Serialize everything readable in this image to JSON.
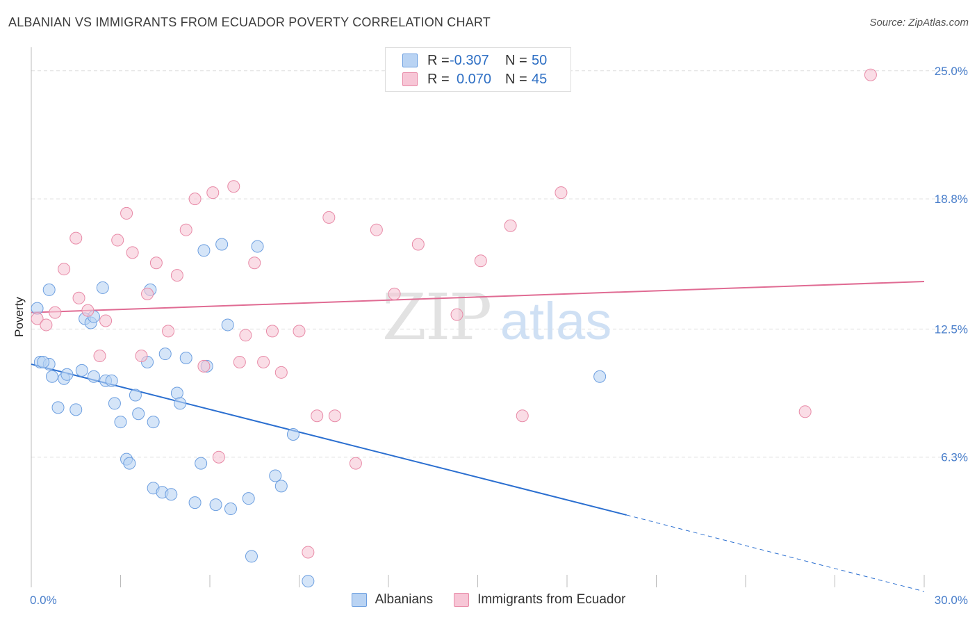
{
  "header": {
    "title": "ALBANIAN VS IMMIGRANTS FROM ECUADOR POVERTY CORRELATION CHART",
    "source": "Source: ZipAtlas.com"
  },
  "legend": {
    "series1": {
      "r_label": "R = ",
      "r_value": "-0.307",
      "n_label": "N = ",
      "n_value": "50"
    },
    "series2": {
      "r_label": "R = ",
      "r_value": "0.070",
      "n_label": "N = ",
      "n_value": "45"
    }
  },
  "bottom_legend": {
    "series1": "Albanians",
    "series2": "Immigrants from Ecuador"
  },
  "colors": {
    "blue_fill": "#b9d3f3",
    "blue_stroke": "#6d9fe0",
    "blue_line": "#2b6fd0",
    "pink_fill": "#f7c6d6",
    "pink_stroke": "#e88aa7",
    "pink_line": "#e06b93",
    "grid": "#dddddd",
    "tick_text": "#4a7fcb"
  },
  "chart_data": {
    "type": "scatter",
    "title": "ALBANIAN VS IMMIGRANTS FROM ECUADOR POVERTY CORRELATION CHART",
    "xlabel": "",
    "ylabel": "Poverty",
    "xlim": [
      0,
      30
    ],
    "ylim": [
      0,
      25.8
    ],
    "x_tick_labels": [
      "0.0%",
      "30.0%"
    ],
    "y_ticks": [
      6.3,
      12.5,
      18.8,
      25.0
    ],
    "y_tick_labels": [
      "6.3%",
      "12.5%",
      "18.8%",
      "25.0%"
    ],
    "grid": "horizontal dashed",
    "watermark": "ZIPatlas",
    "series": [
      {
        "name": "Albanians",
        "color": "#6d9fe0",
        "trend": {
          "x": [
            0,
            20
          ],
          "y": [
            10.8,
            3.5
          ],
          "dashed_to": [
            30,
            -0.2
          ]
        },
        "points": [
          [
            0.3,
            10.9
          ],
          [
            0.6,
            14.4
          ],
          [
            0.6,
            10.8
          ],
          [
            0.7,
            10.2
          ],
          [
            0.9,
            8.7
          ],
          [
            1.1,
            10.1
          ],
          [
            1.2,
            10.3
          ],
          [
            1.5,
            8.6
          ],
          [
            1.7,
            10.5
          ],
          [
            1.8,
            13.0
          ],
          [
            2.0,
            12.8
          ],
          [
            2.1,
            13.1
          ],
          [
            2.1,
            10.2
          ],
          [
            2.4,
            14.5
          ],
          [
            2.5,
            10.0
          ],
          [
            2.7,
            10.0
          ],
          [
            2.8,
            8.9
          ],
          [
            3.0,
            8.0
          ],
          [
            3.2,
            6.2
          ],
          [
            3.3,
            6.0
          ],
          [
            3.5,
            9.3
          ],
          [
            3.6,
            8.4
          ],
          [
            3.9,
            10.9
          ],
          [
            4.0,
            14.4
          ],
          [
            4.1,
            4.8
          ],
          [
            4.1,
            8.0
          ],
          [
            4.4,
            4.6
          ],
          [
            4.5,
            11.3
          ],
          [
            4.7,
            4.5
          ],
          [
            4.9,
            9.4
          ],
          [
            5.0,
            8.9
          ],
          [
            5.2,
            11.1
          ],
          [
            5.5,
            4.1
          ],
          [
            5.7,
            6.0
          ],
          [
            5.8,
            16.3
          ],
          [
            5.9,
            10.7
          ],
          [
            6.2,
            4.0
          ],
          [
            6.4,
            16.6
          ],
          [
            6.6,
            12.7
          ],
          [
            6.7,
            3.8
          ],
          [
            7.3,
            4.3
          ],
          [
            7.4,
            1.5
          ],
          [
            7.6,
            16.5
          ],
          [
            8.2,
            5.4
          ],
          [
            8.4,
            4.9
          ],
          [
            8.8,
            7.4
          ],
          [
            9.3,
            0.3
          ],
          [
            19.1,
            10.2
          ],
          [
            0.2,
            13.5
          ],
          [
            0.4,
            10.9
          ]
        ]
      },
      {
        "name": "Immigrants from Ecuador",
        "color": "#e88aa7",
        "trend": {
          "x": [
            0,
            30
          ],
          "y": [
            13.3,
            14.8
          ]
        },
        "points": [
          [
            0.2,
            13.0
          ],
          [
            0.5,
            12.7
          ],
          [
            0.8,
            13.3
          ],
          [
            1.1,
            15.4
          ],
          [
            1.5,
            16.9
          ],
          [
            1.6,
            14.0
          ],
          [
            1.9,
            13.4
          ],
          [
            2.3,
            11.2
          ],
          [
            2.5,
            12.9
          ],
          [
            2.9,
            16.8
          ],
          [
            3.2,
            18.1
          ],
          [
            3.4,
            16.2
          ],
          [
            3.7,
            11.2
          ],
          [
            3.9,
            14.2
          ],
          [
            4.2,
            15.7
          ],
          [
            4.6,
            12.4
          ],
          [
            4.9,
            15.1
          ],
          [
            5.2,
            17.3
          ],
          [
            5.5,
            18.8
          ],
          [
            5.8,
            10.7
          ],
          [
            6.1,
            19.1
          ],
          [
            6.3,
            6.3
          ],
          [
            6.8,
            19.4
          ],
          [
            7.0,
            10.9
          ],
          [
            7.2,
            12.2
          ],
          [
            7.5,
            15.7
          ],
          [
            7.8,
            10.9
          ],
          [
            8.1,
            12.4
          ],
          [
            8.4,
            10.4
          ],
          [
            9.0,
            12.4
          ],
          [
            9.3,
            1.7
          ],
          [
            9.6,
            8.3
          ],
          [
            10.0,
            17.9
          ],
          [
            10.2,
            8.3
          ],
          [
            10.9,
            6.0
          ],
          [
            11.6,
            17.3
          ],
          [
            12.2,
            14.2
          ],
          [
            13.0,
            16.6
          ],
          [
            14.3,
            13.2
          ],
          [
            15.1,
            15.8
          ],
          [
            16.1,
            17.5
          ],
          [
            16.5,
            8.3
          ],
          [
            17.8,
            19.1
          ],
          [
            26.0,
            8.5
          ],
          [
            28.2,
            24.8
          ]
        ]
      }
    ]
  }
}
